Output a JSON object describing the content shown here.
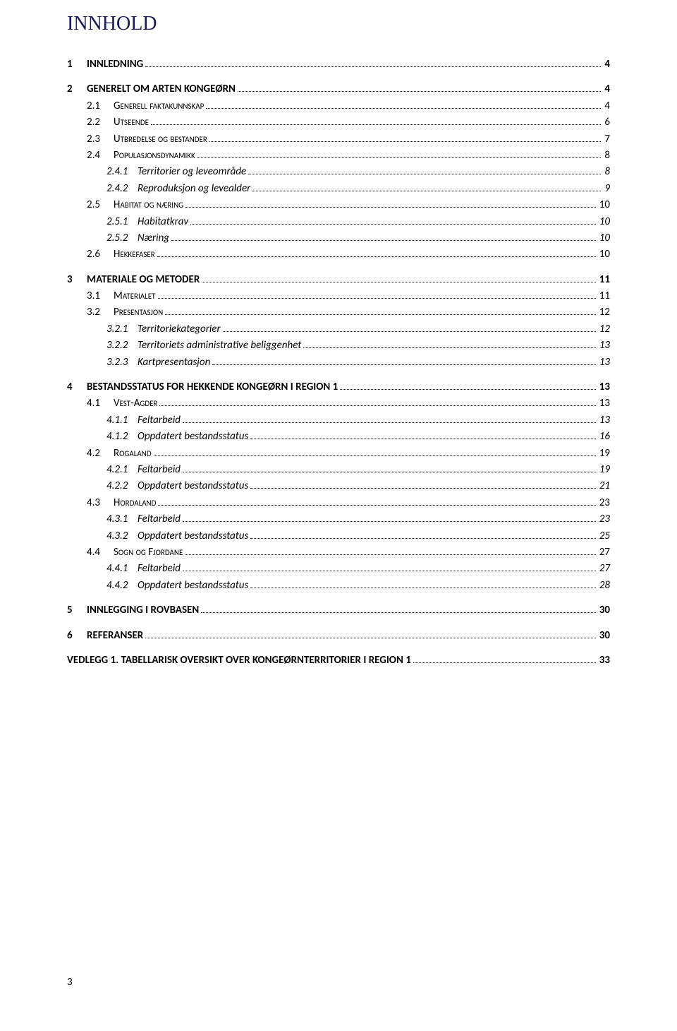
{
  "title": "INNHOLD",
  "footer": "3",
  "entries": [
    {
      "level": 1,
      "num": "1",
      "label": "INNLEDNING",
      "page": "4",
      "caps": true
    },
    {
      "level": 1,
      "num": "2",
      "label": "GENERELT OM ARTEN KONGEØRN",
      "page": "4",
      "caps": true
    },
    {
      "level": 2,
      "num": "2.1",
      "label": "Generell faktakunnskap",
      "page": "4",
      "sc": true
    },
    {
      "level": 2,
      "num": "2.2",
      "label": "Utseende",
      "page": "6",
      "sc": true
    },
    {
      "level": 2,
      "num": "2.3",
      "label": "Utbredelse og bestander",
      "page": "7",
      "sc": true
    },
    {
      "level": 2,
      "num": "2.4",
      "label": "Populasjonsdynamikk",
      "page": "8",
      "sc": true
    },
    {
      "level": 3,
      "num": "2.4.1",
      "label": "Territorier og leveområde",
      "page": "8"
    },
    {
      "level": 3,
      "num": "2.4.2",
      "label": "Reproduksjon og levealder",
      "page": "9"
    },
    {
      "level": 2,
      "num": "2.5",
      "label": "Habitat og næring",
      "page": "10",
      "sc": true
    },
    {
      "level": 3,
      "num": "2.5.1",
      "label": "Habitatkrav",
      "page": "10"
    },
    {
      "level": 3,
      "num": "2.5.2",
      "label": "Næring",
      "page": "10"
    },
    {
      "level": 2,
      "num": "2.6",
      "label": "Hekkefaser",
      "page": "10",
      "sc": true
    },
    {
      "level": 1,
      "num": "3",
      "label": "MATERIALE OG METODER",
      "page": "11",
      "caps": true
    },
    {
      "level": 2,
      "num": "3.1",
      "label": "Materialet",
      "page": "11",
      "sc": true
    },
    {
      "level": 2,
      "num": "3.2",
      "label": "Presentasjon",
      "page": "12",
      "sc": true
    },
    {
      "level": 3,
      "num": "3.2.1",
      "label": "Territoriekategorier",
      "page": "12"
    },
    {
      "level": 3,
      "num": "3.2.2",
      "label": "Territoriets administrative beliggenhet",
      "page": "13"
    },
    {
      "level": 3,
      "num": "3.2.3",
      "label": "Kartpresentasjon",
      "page": "13"
    },
    {
      "level": 1,
      "num": "4",
      "label": "BESTANDSSTATUS FOR HEKKENDE KONGEØRN I REGION 1",
      "page": "13",
      "caps": true
    },
    {
      "level": 2,
      "num": "4.1",
      "label": "Vest-Agder",
      "page": "13",
      "sc": true
    },
    {
      "level": 3,
      "num": "4.1.1",
      "label": "Feltarbeid",
      "page": "13"
    },
    {
      "level": 3,
      "num": "4.1.2",
      "label": "Oppdatert bestandsstatus",
      "page": "16"
    },
    {
      "level": 2,
      "num": "4.2",
      "label": "Rogaland",
      "page": "19",
      "sc": true
    },
    {
      "level": 3,
      "num": "4.2.1",
      "label": "Feltarbeid",
      "page": "19"
    },
    {
      "level": 3,
      "num": "4.2.2",
      "label": "Oppdatert bestandsstatus",
      "page": "21"
    },
    {
      "level": 2,
      "num": "4.3",
      "label": "Hordaland",
      "page": "23",
      "sc": true
    },
    {
      "level": 3,
      "num": "4.3.1",
      "label": "Feltarbeid",
      "page": "23"
    },
    {
      "level": 3,
      "num": "4.3.2",
      "label": "Oppdatert bestandsstatus",
      "page": "25"
    },
    {
      "level": 2,
      "num": "4.4",
      "label": "Sogn og Fjordane",
      "page": "27",
      "sc": true
    },
    {
      "level": 3,
      "num": "4.4.1",
      "label": "Feltarbeid",
      "page": "27"
    },
    {
      "level": 3,
      "num": "4.4.2",
      "label": "Oppdatert bestandsstatus",
      "page": "28"
    },
    {
      "level": 1,
      "num": "5",
      "label": "INNLEGGING I ROVBASEN",
      "page": "30",
      "caps": true
    },
    {
      "level": 1,
      "num": "6",
      "label": "REFERANSER",
      "page": "30",
      "caps": true
    },
    {
      "level": 1,
      "num": "",
      "label": "VEDLEGG 1. TABELLARISK OVERSIKT OVER KONGEØRNTERRITORIER I REGION 1",
      "page": "33",
      "caps": true,
      "nonum": true
    }
  ]
}
